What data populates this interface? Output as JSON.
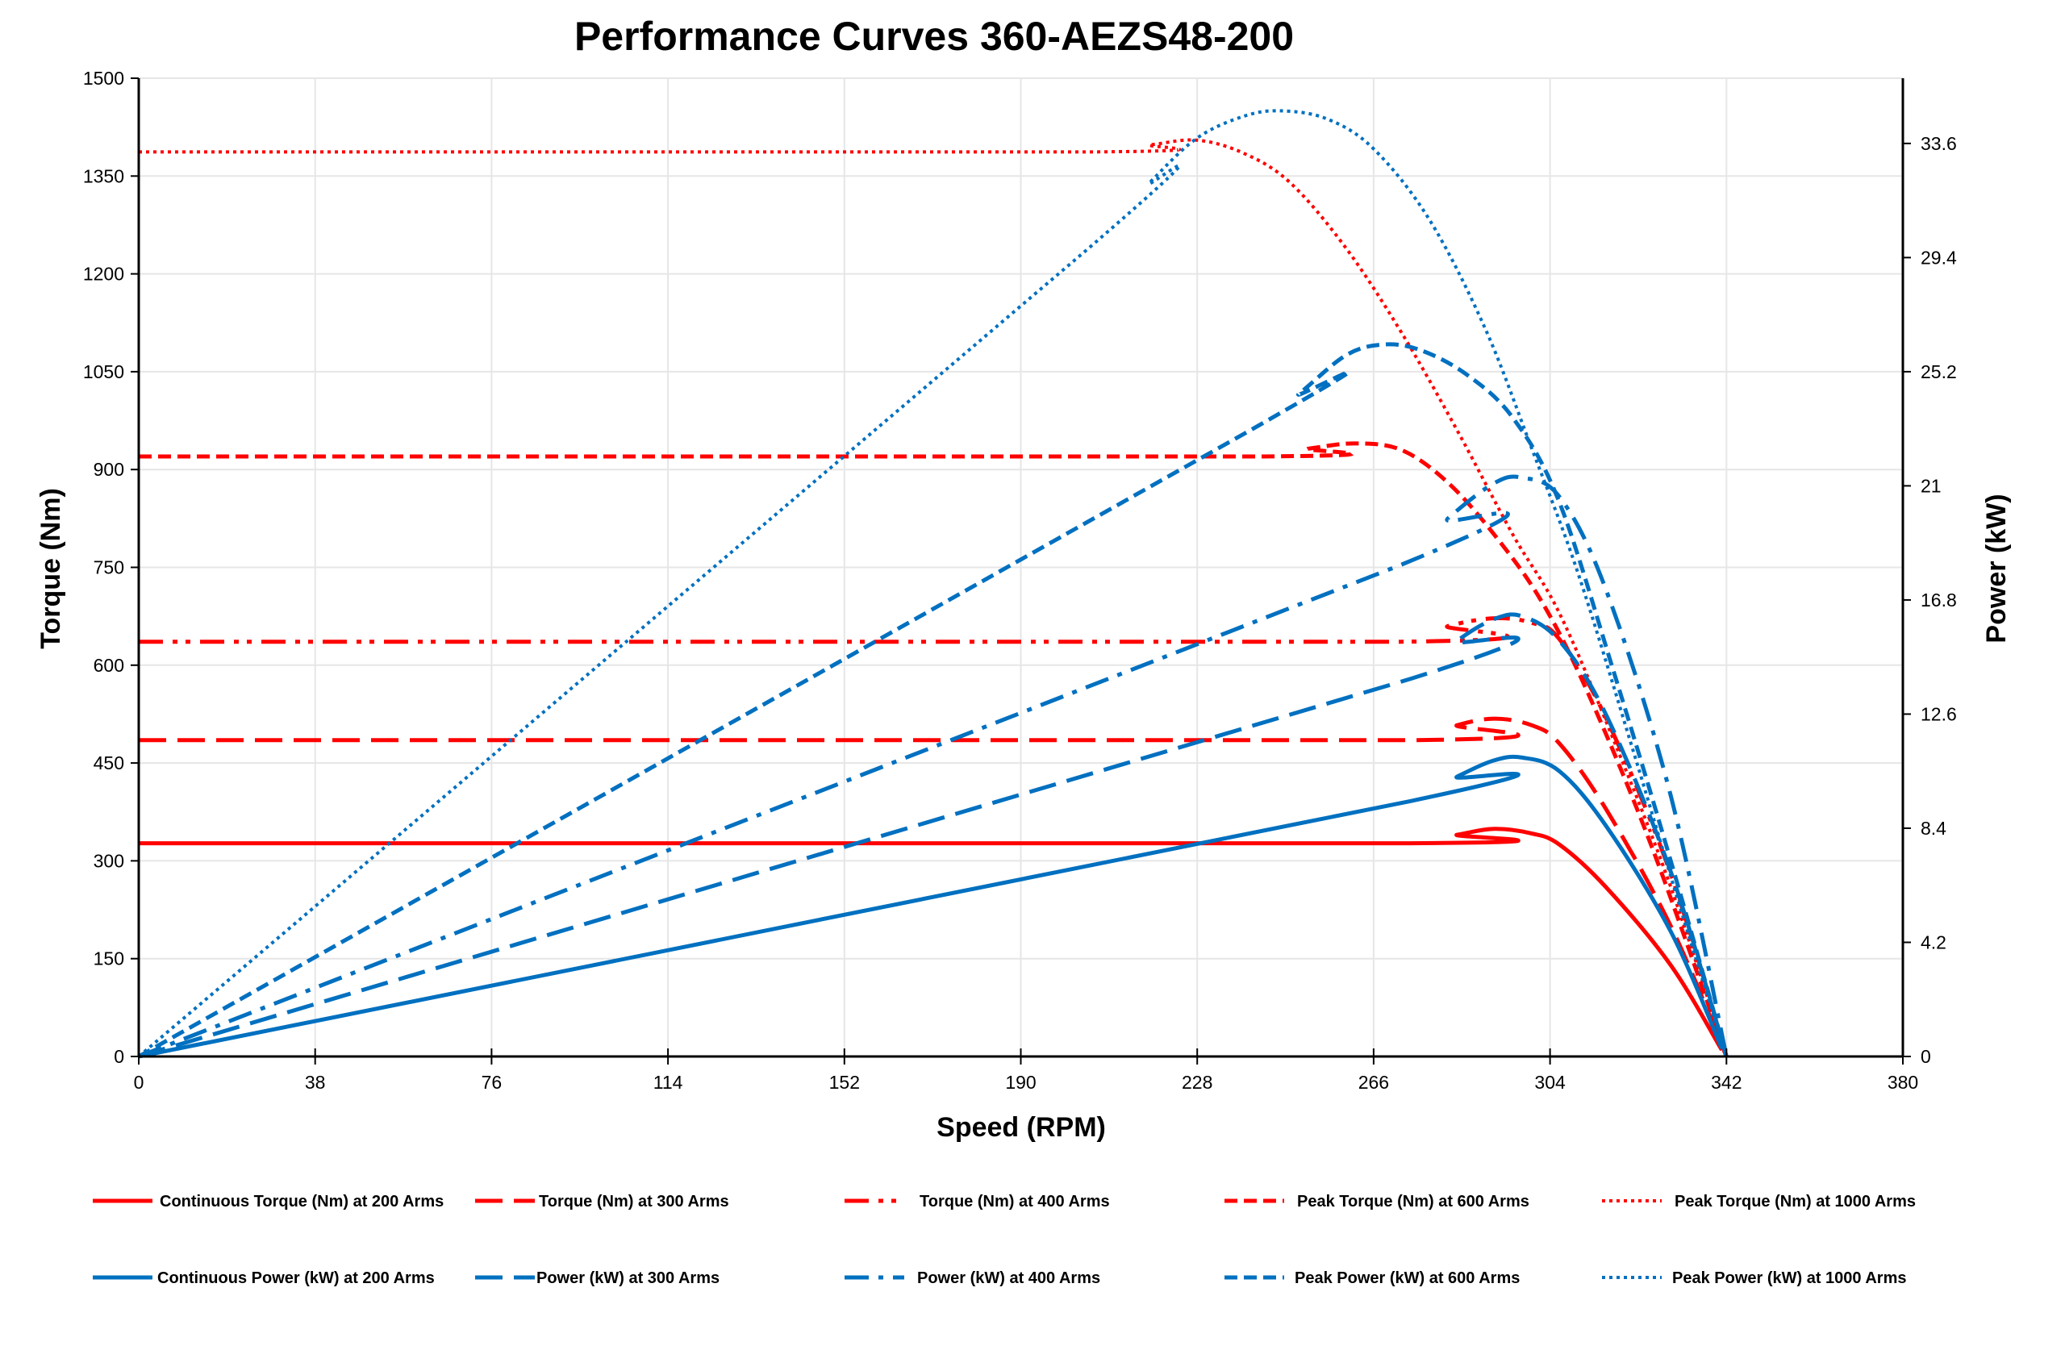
{
  "chart_data": {
    "type": "line",
    "title": "Performance Curves 360-AEZS48-200",
    "xlabel": "Speed (RPM)",
    "ylabel": "Torque (Nm)",
    "y2label": "Power (kW)",
    "xlim": [
      0,
      380
    ],
    "ylim": [
      0,
      1500
    ],
    "y2lim": [
      0,
      36
    ],
    "xticks": [
      0,
      38,
      76,
      114,
      152,
      190,
      228,
      266,
      304,
      342,
      380
    ],
    "yticks": [
      0,
      150,
      300,
      450,
      600,
      750,
      900,
      1050,
      1200,
      1350,
      1500
    ],
    "y2ticks": [
      0,
      4.2,
      8.4,
      12.6,
      16.8,
      21,
      25.2,
      29.4,
      33.6
    ],
    "grid": true,
    "legend_position": "bottom",
    "colors": {
      "torque": "#FF0000",
      "power": "#0070C0"
    },
    "series": [
      {
        "name": "Continuous Torque (Nm) at 200 Arms",
        "axis": "left",
        "color": "#FF0000",
        "dash": "solid",
        "x": [
          0,
          274,
          284,
          292,
          300,
          306,
          316,
          330,
          341
        ],
        "y": [
          327,
          327,
          340,
          349,
          342,
          325,
          260,
          140,
          10
        ]
      },
      {
        "name": "Torque (Nm) at 300 Arms",
        "axis": "left",
        "color": "#FF0000",
        "dash": "long-dash",
        "x": [
          0,
          274,
          284,
          292,
          300,
          306,
          316,
          330,
          342
        ],
        "y": [
          485,
          485,
          508,
          518,
          508,
          480,
          380,
          200,
          0
        ]
      },
      {
        "name": "Torque (Nm) at 400 Arms",
        "axis": "left",
        "color": "#FF0000",
        "dash": "dash-dot-dot",
        "x": [
          0,
          272,
          282,
          292,
          300,
          306,
          316,
          330,
          342
        ],
        "y": [
          636,
          636,
          660,
          672,
          665,
          640,
          520,
          280,
          0
        ]
      },
      {
        "name": "Peak Torque (Nm) at 600 Arms",
        "axis": "left",
        "color": "#FF0000",
        "dash": "dash",
        "x": [
          0,
          240,
          252,
          262,
          272,
          282,
          292,
          302,
          312,
          326,
          342
        ],
        "y": [
          920,
          920,
          932,
          940,
          930,
          880,
          800,
          700,
          560,
          320,
          0
        ]
      },
      {
        "name": "Peak Torque (Nm) at 1000 Arms",
        "axis": "left",
        "color": "#FF0000",
        "dash": "dot",
        "x": [
          0,
          205,
          218,
          228,
          238,
          248,
          260,
          272,
          284,
          296,
          306,
          318,
          330,
          342
        ],
        "y": [
          1387,
          1387,
          1398,
          1405,
          1385,
          1340,
          1240,
          1110,
          960,
          800,
          680,
          480,
          260,
          0
        ]
      },
      {
        "name": "Continuous Power (kW) at 200 Arms",
        "axis": "right",
        "color": "#0070C0",
        "dash": "solid",
        "x": [
          0,
          274,
          284,
          292,
          298,
          306,
          316,
          330,
          341
        ],
        "y": [
          0,
          9.4,
          10.3,
          10.9,
          11.0,
          10.5,
          8.5,
          4.6,
          0.3
        ]
      },
      {
        "name": "Power (kW) at 300 Arms",
        "axis": "right",
        "color": "#0070C0",
        "dash": "long-dash",
        "x": [
          0,
          274,
          284,
          292,
          298,
          306,
          316,
          330,
          342
        ],
        "y": [
          0,
          13.9,
          15.3,
          16.1,
          16.2,
          15.3,
          12.6,
          6.8,
          0
        ]
      },
      {
        "name": "Power (kW) at 400 Arms",
        "axis": "right",
        "color": "#0070C0",
        "dash": "dash-dot",
        "x": [
          0,
          272,
          282,
          292,
          298,
          306,
          316,
          330,
          342
        ],
        "y": [
          0,
          18.1,
          19.8,
          21.1,
          21.3,
          20.6,
          17.2,
          9.6,
          0
        ]
      },
      {
        "name": "Peak Power (kW) at 600 Arms",
        "axis": "right",
        "color": "#0070C0",
        "dash": "dash",
        "x": [
          0,
          240,
          250,
          260,
          268,
          276,
          286,
          296,
          306,
          318,
          330,
          342
        ],
        "y": [
          0,
          23.1,
          24.4,
          25.8,
          26.2,
          26.0,
          25.1,
          23.5,
          20.4,
          14.0,
          7.2,
          0
        ]
      },
      {
        "name": "Peak Power (kW) at 1000 Arms",
        "axis": "right",
        "color": "#0070C0",
        "dash": "dot",
        "x": [
          0,
          205,
          218,
          228,
          238,
          246,
          256,
          266,
          278,
          290,
          300,
          310,
          322,
          332,
          342
        ],
        "y": [
          0,
          29.8,
          32.2,
          33.8,
          34.6,
          34.8,
          34.5,
          33.4,
          30.8,
          26.8,
          22.4,
          17.8,
          11.2,
          5.5,
          0
        ]
      }
    ]
  }
}
